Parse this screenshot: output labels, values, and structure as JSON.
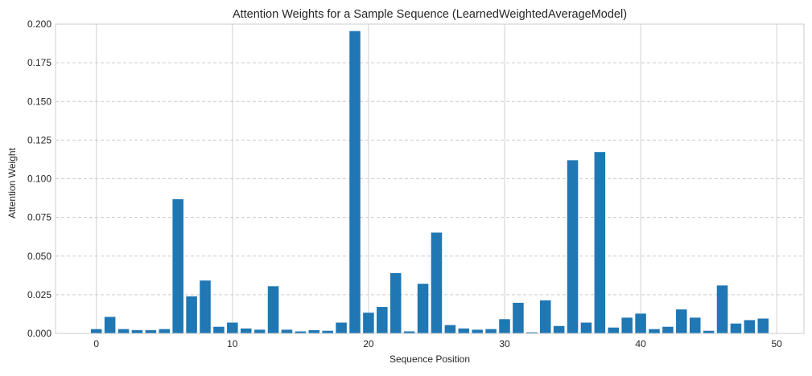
{
  "chart_data": {
    "type": "bar",
    "title": "Attention Weights for a Sample Sequence (LearnedWeightedAverageModel)",
    "xlabel": "Sequence Position",
    "ylabel": "Attention Weight",
    "x": [
      0,
      1,
      2,
      3,
      4,
      5,
      6,
      7,
      8,
      9,
      10,
      11,
      12,
      13,
      14,
      15,
      16,
      17,
      18,
      19,
      20,
      21,
      22,
      23,
      24,
      25,
      26,
      27,
      28,
      29,
      30,
      31,
      32,
      33,
      34,
      35,
      36,
      37,
      38,
      39,
      40,
      41,
      42,
      43,
      44,
      45,
      46,
      47,
      48,
      49
    ],
    "values": [
      0.0028,
      0.0107,
      0.0028,
      0.0021,
      0.0021,
      0.0028,
      0.0868,
      0.024,
      0.0342,
      0.0043,
      0.007,
      0.0032,
      0.0024,
      0.0305,
      0.0024,
      0.0013,
      0.0021,
      0.0017,
      0.007,
      0.1955,
      0.0134,
      0.0171,
      0.039,
      0.0013,
      0.0321,
      0.0652,
      0.0054,
      0.0032,
      0.0024,
      0.0028,
      0.0092,
      0.0198,
      0.0007,
      0.0214,
      0.0048,
      0.112,
      0.007,
      0.1173,
      0.0038,
      0.0102,
      0.0128,
      0.0028,
      0.0043,
      0.0155,
      0.0102,
      0.0017,
      0.031,
      0.0064,
      0.0086,
      0.0096
    ],
    "xlim": [
      -3,
      52
    ],
    "ylim": [
      0,
      0.2
    ],
    "xticks": [
      0,
      10,
      20,
      30,
      40,
      50
    ],
    "xtick_labels": [
      "0",
      "10",
      "20",
      "30",
      "40",
      "50"
    ],
    "yticks": [
      0,
      0.025,
      0.05,
      0.075,
      0.1,
      0.125,
      0.15,
      0.175,
      0.2
    ],
    "ytick_labels": [
      "0.000",
      "0.025",
      "0.050",
      "0.075",
      "0.100",
      "0.125",
      "0.150",
      "0.175",
      "0.200"
    ],
    "grid": {
      "x": "solid",
      "y": "dashed"
    },
    "bar_color": "#1f77b4",
    "grid_color": "#cccccc",
    "axis_color": "#cccccc"
  }
}
